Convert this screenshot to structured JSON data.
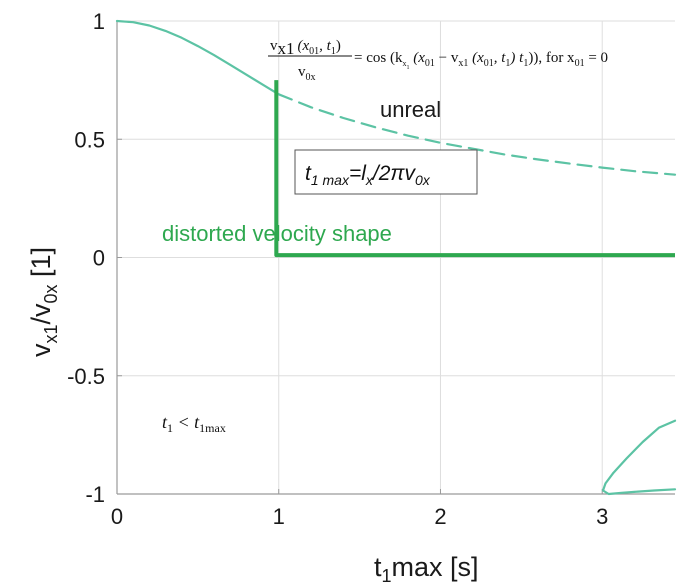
{
  "chart_data": {
    "type": "line",
    "xlabel": {
      "main": "t",
      "sub": "1",
      "rest": "max   [s]"
    },
    "ylabel": {
      "v1": "v",
      "s1": "x1",
      "slash": "/v",
      "s2": "0x",
      "unit": " [1]"
    },
    "xlim": [
      0,
      3.45
    ],
    "ylim": [
      -1,
      1
    ],
    "xticks": [
      0,
      1,
      2,
      3
    ],
    "xtick_labels": [
      "0",
      "1",
      "2",
      "3"
    ],
    "yticks": [
      1,
      0.5,
      0,
      -0.5,
      -1
    ],
    "ytick_labels": [
      "1",
      "0.5",
      "0",
      "-0.5",
      "-1"
    ],
    "grid": true,
    "colors": {
      "ideal": "#5cc3a4",
      "distorted": "#2ea84f",
      "grid": "#dedede",
      "axis": "#9a9a9a"
    },
    "series": [
      {
        "style": "solid",
        "color": "#5cc3a4",
        "x": [
          0,
          0.1,
          0.2,
          0.3,
          0.4,
          0.5,
          0.6,
          0.7,
          0.8,
          0.9,
          1.0
        ],
        "y": [
          1.0,
          0.995,
          0.981,
          0.958,
          0.929,
          0.894,
          0.856,
          0.815,
          0.773,
          0.731,
          0.69
        ]
      },
      {
        "style": "dashed",
        "color": "#5cc3a4",
        "x": [
          1.0,
          1.2,
          1.4,
          1.6,
          1.8,
          2.0,
          2.2,
          2.4,
          2.6,
          2.8,
          3.0,
          3.2,
          3.45
        ],
        "y": [
          0.69,
          0.635,
          0.59,
          0.55,
          0.515,
          0.485,
          0.46,
          0.435,
          0.415,
          0.397,
          0.38,
          0.365,
          0.35
        ]
      },
      {
        "style": "solid-thick",
        "color": "#2ea84f",
        "x": [
          0.985,
          0.985,
          3.45
        ],
        "y": [
          0.75,
          0.01,
          0.01
        ]
      },
      {
        "style": "solid",
        "color": "#5cc3a4",
        "x": [
          3.45,
          3.35,
          3.25,
          3.15,
          3.07,
          3.02,
          3.005,
          3.04,
          3.12,
          3.22,
          3.32,
          3.45
        ],
        "y": [
          -0.69,
          -0.72,
          -0.78,
          -0.85,
          -0.91,
          -0.955,
          -0.985,
          -1.0,
          -0.995,
          -0.99,
          -0.985,
          -0.98
        ]
      }
    ],
    "annotations": {
      "unreal": "unreal",
      "distorted": "distorted velocity shape"
    },
    "equation": {
      "num_v": "v",
      "num_sub": "x1",
      "num_args": "(x",
      "num_args_sub": "01",
      "num_args_mid": ", t",
      "num_args_sub2": "1",
      "num_args_end": ")",
      "den_v": "v",
      "den_sub": "0x",
      "rhs": "= cos (k",
      "rhs_k_sub": "x",
      "rhs_k_sub2": "1",
      "rhs_mid": " (x",
      "rhs_sub1": "01",
      "rhs_mid2": " − v",
      "rhs_sub2": "x1",
      "rhs_mid3": " (x",
      "rhs_sub3": "01",
      "rhs_mid4": ", t",
      "rhs_sub4": "1",
      "rhs_mid5": ") t",
      "rhs_sub5": "1",
      "rhs_end": ")), for  x",
      "rhs_sub6": "01",
      "rhs_tail": " = 0"
    },
    "box_formula": {
      "t": "t",
      "tsub": "1 max",
      "eq": "=l",
      "lsub": "x",
      "mid": "/2πv",
      "vsub": "0x"
    },
    "condition": {
      "t1": "t",
      "t1sub": "1",
      "lt": " < t",
      "t2sub": "1max"
    }
  }
}
